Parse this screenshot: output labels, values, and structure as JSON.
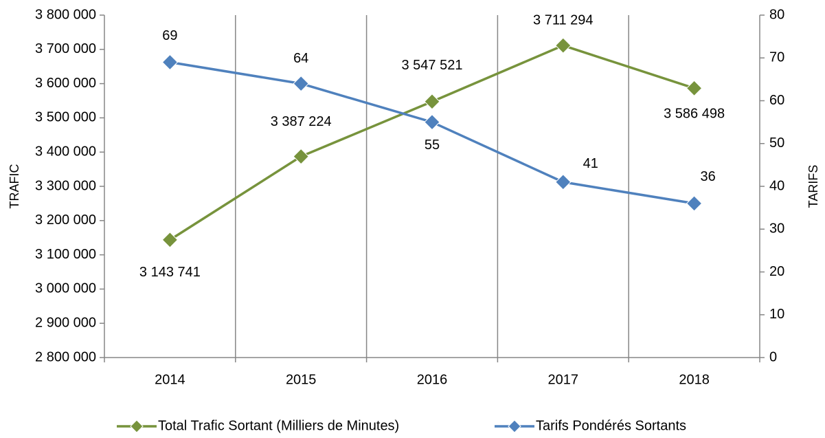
{
  "chart_data": {
    "type": "line",
    "categories": [
      "2014",
      "2015",
      "2016",
      "2017",
      "2018"
    ],
    "ylabel": "TRAFIC",
    "y2label": "TARIFS",
    "ylim": [
      2800000,
      3800000
    ],
    "yticks": [
      {
        "value": 2800000,
        "label": "2 800 000"
      },
      {
        "value": 2900000,
        "label": "2 900 000"
      },
      {
        "value": 3000000,
        "label": "3 000 000"
      },
      {
        "value": 3100000,
        "label": "3 100 000"
      },
      {
        "value": 3200000,
        "label": "3 200 000"
      },
      {
        "value": 3300000,
        "label": "3 300 000"
      },
      {
        "value": 3400000,
        "label": "3 400 000"
      },
      {
        "value": 3500000,
        "label": "3 500 000"
      },
      {
        "value": 3600000,
        "label": "3 600 000"
      },
      {
        "value": 3700000,
        "label": "3 700 000"
      },
      {
        "value": 3800000,
        "label": "3 800 000"
      }
    ],
    "y2lim": [
      0,
      80
    ],
    "y2ticks": [
      0,
      10,
      20,
      30,
      40,
      50,
      60,
      70,
      80
    ],
    "legend": "bottom",
    "series": [
      {
        "name": "Total Trafic Sortant (Milliers de Minutes)",
        "color": "#77933c",
        "values": [
          3143741,
          3387224,
          3547521,
          3711294,
          3586498
        ],
        "value_labels": [
          "3 143 741",
          "3 387 224",
          "3 547 521",
          "3 711 294",
          "3 586 498"
        ]
      },
      {
        "name": "Tarifs Pondérés Sortants",
        "color": "#4f81bd",
        "axis": "y2",
        "values": [
          69,
          64,
          55,
          41,
          36
        ]
      }
    ]
  }
}
